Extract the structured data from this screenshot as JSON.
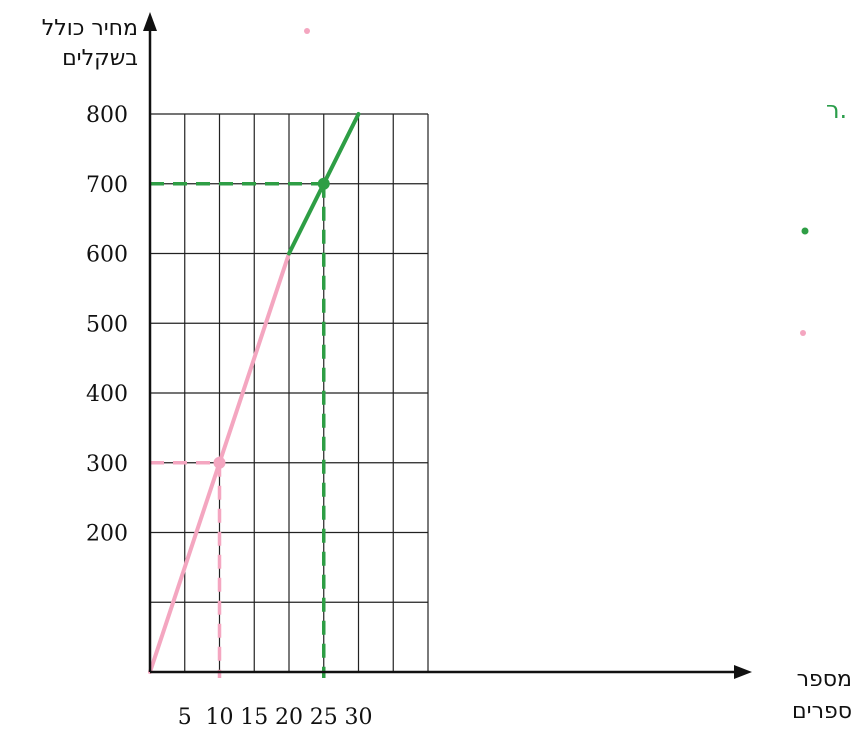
{
  "chart_data": {
    "type": "line",
    "ylabel_lines": [
      "מחיר כולל",
      "בשקלים"
    ],
    "xlabel_lines": [
      "מספר",
      "ספרים"
    ],
    "x_ticks": [
      5,
      10,
      15,
      20,
      25,
      30
    ],
    "y_ticks": [
      200,
      300,
      400,
      500,
      600,
      700,
      800
    ],
    "xlim": [
      0,
      40
    ],
    "ylim": [
      0,
      800
    ],
    "grid": true,
    "series": [
      {
        "color": "#f4a6c0",
        "points": [
          [
            0,
            0
          ],
          [
            20,
            600
          ]
        ]
      },
      {
        "color": "#2e9e45",
        "points": [
          [
            20,
            600
          ],
          [
            30,
            800
          ]
        ]
      }
    ],
    "highlights": [
      {
        "x": 10,
        "y": 300,
        "color": "#f4a6c0",
        "dashed": true
      },
      {
        "x": 25,
        "y": 700,
        "color": "#2e9e45",
        "dashed": true
      }
    ]
  },
  "fragments": {
    "right_edge_text": "ר."
  },
  "colors": {
    "pink": "#f4a6c0",
    "green": "#2e9e45",
    "grid": "#222222",
    "axis": "#111111"
  }
}
